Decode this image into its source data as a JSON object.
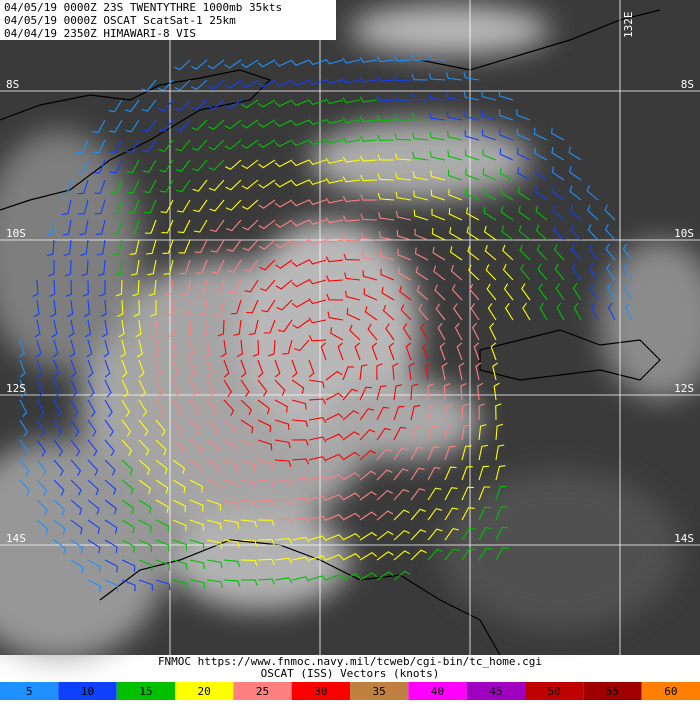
{
  "header": {
    "lines": [
      "04/05/19 0000Z  23S TWENTYTHRE 1000mb 35kts",
      "04/05/19 0000Z  OSCAT ScatSat-1 25km",
      "04/04/19 2350Z  HIMAWARI-8 VIS"
    ]
  },
  "grid": {
    "lat_labels": [
      "8S",
      "10S",
      "12S",
      "14S"
    ],
    "lon_label": "132E"
  },
  "footer": {
    "lines": [
      "FNMOC https://www.fnmoc.navy.mil/tcweb/cgi-bin/tc_home.cgi",
      "OSCAT (ISS) Vectors (knots)"
    ]
  },
  "legend": {
    "items": [
      {
        "value": 5,
        "color": "#1e90ff"
      },
      {
        "value": 10,
        "color": "#1040ff"
      },
      {
        "value": 15,
        "color": "#00c000"
      },
      {
        "value": 20,
        "color": "#ffff00"
      },
      {
        "value": 25,
        "color": "#ff8080"
      },
      {
        "value": 30,
        "color": "#ff0000"
      },
      {
        "value": 35,
        "color": "#c08040"
      },
      {
        "value": 40,
        "color": "#ff00ff"
      },
      {
        "value": 45,
        "color": "#a000c0"
      },
      {
        "value": 50,
        "color": "#c00000"
      },
      {
        "value": 55,
        "color": "#a00000"
      },
      {
        "value": 60,
        "color": "#ff8000"
      }
    ]
  }
}
